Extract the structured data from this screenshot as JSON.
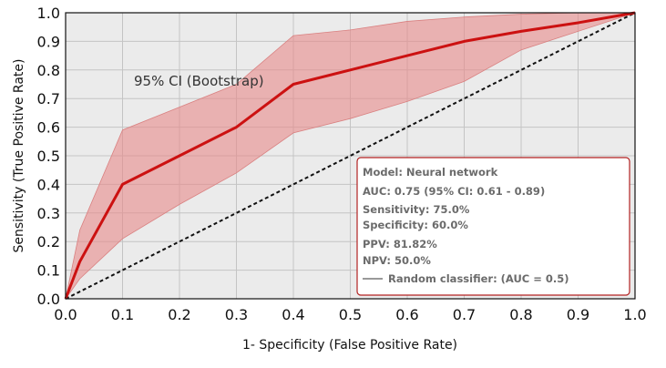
{
  "chart_data": {
    "type": "line",
    "title": "",
    "xlabel": "1- Specificity (False Positive Rate)",
    "ylabel": "Sensitivity (True Positive Rate)",
    "xlim": [
      0,
      1
    ],
    "ylim": [
      0,
      1
    ],
    "xticks": [
      "0.0",
      "0.1",
      "0.2",
      "0.3",
      "0.4",
      "0.5",
      "0.6",
      "0.7",
      "0.8",
      "0.9",
      "1.0"
    ],
    "yticks": [
      "0.0",
      "0.1",
      "0.2",
      "0.3",
      "0.4",
      "0.5",
      "0.6",
      "0.7",
      "0.8",
      "0.9",
      "1.0"
    ],
    "grid": true,
    "series": [
      {
        "role": "roc",
        "x": [
          0.0,
          0.025,
          0.1,
          0.2,
          0.3,
          0.4,
          0.5,
          0.6,
          0.7,
          0.8,
          0.9,
          1.0
        ],
        "y": [
          0.0,
          0.13,
          0.4,
          0.5,
          0.6,
          0.75,
          0.8,
          0.85,
          0.9,
          0.935,
          0.965,
          1.0
        ],
        "color": "#cc1111"
      },
      {
        "role": "ci_band",
        "x": [
          0.0,
          0.025,
          0.1,
          0.2,
          0.3,
          0.4,
          0.5,
          0.6,
          0.7,
          0.8,
          0.9,
          1.0
        ],
        "upper": [
          0.0,
          0.24,
          0.59,
          0.67,
          0.75,
          0.92,
          0.94,
          0.97,
          0.985,
          0.995,
          1.0,
          1.0
        ],
        "lower": [
          0.0,
          0.07,
          0.21,
          0.33,
          0.44,
          0.58,
          0.63,
          0.69,
          0.76,
          0.87,
          0.935,
          1.0
        ],
        "color": "#e88a8a"
      },
      {
        "role": "random_classifier",
        "x": [
          0.0,
          1.0
        ],
        "y": [
          0.0,
          1.0
        ],
        "color": "#111111"
      }
    ],
    "annotation": "95% CI (Bootstrap)",
    "legend": {
      "placement": "bottom-right",
      "lines": [
        "Model: Neural network",
        "AUC: 0.75 (95% CI: 0.61 - 0.89)",
        "Sensitivity: 75.0%",
        "Specificity: 60.0%",
        "PPV: 81.82%",
        "NPV: 50.0%"
      ],
      "random_label": "Random classifier: (AUC = 0.5)",
      "border_color": "#b22222"
    }
  }
}
